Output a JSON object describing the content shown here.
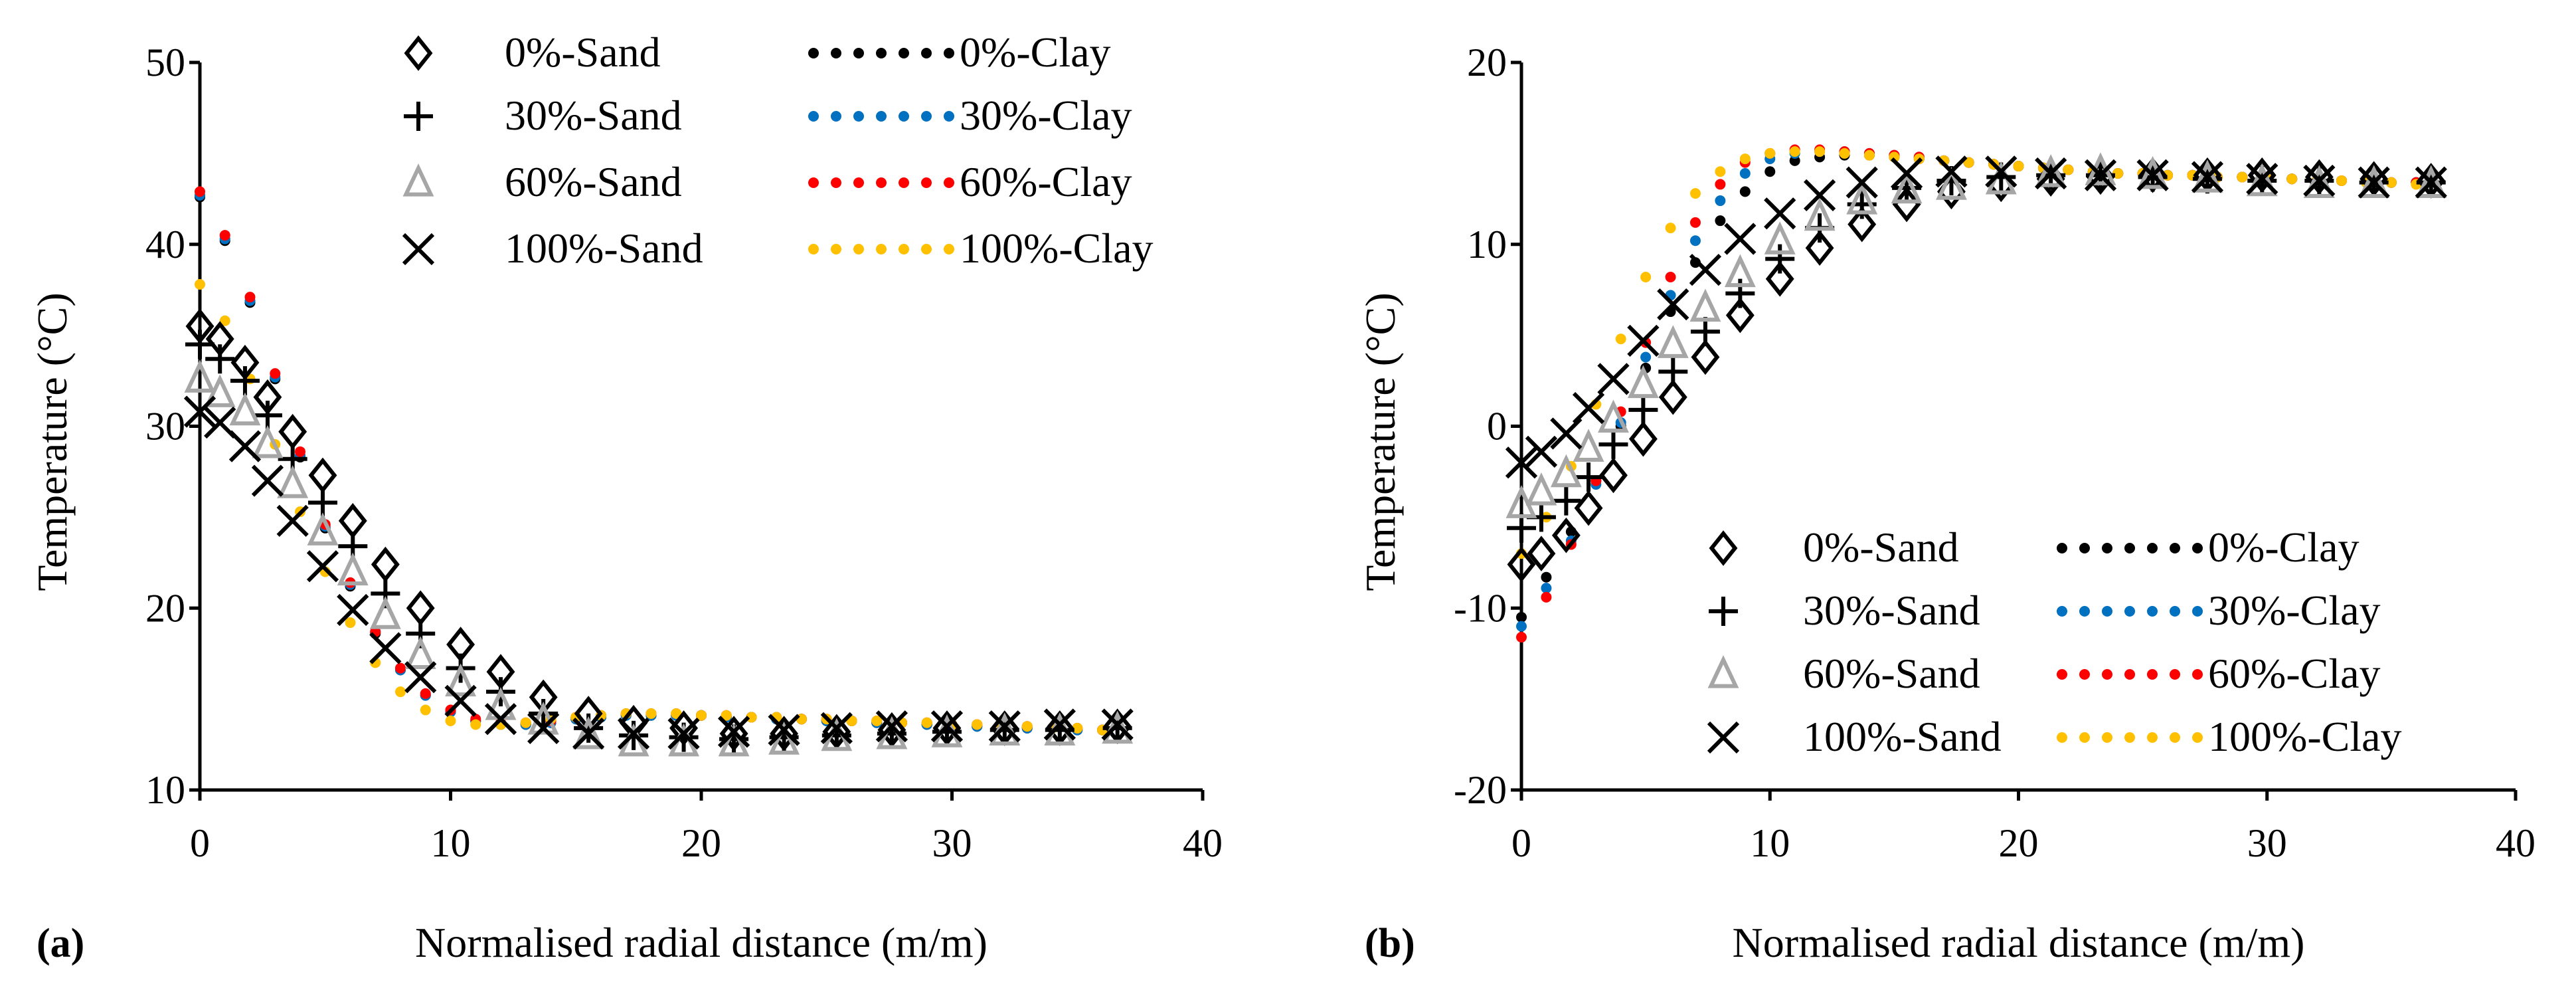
{
  "chart_data": [
    {
      "type": "scatter",
      "panel_label": "(a)",
      "xlabel": "Normalised radial distance (m/m)",
      "ylabel": "Temperature (°C)",
      "xlim": [
        0,
        40
      ],
      "ylim": [
        10,
        50
      ],
      "xticks": [
        0,
        10,
        20,
        30,
        40
      ],
      "yticks": [
        10,
        20,
        30,
        40,
        50
      ],
      "grid": false,
      "legend_position": "top-right",
      "sand_x": [
        0,
        0.8,
        1.8,
        2.7,
        3.7,
        4.9,
        6.1,
        7.4,
        8.8,
        10.4,
        12,
        13.7,
        15.5,
        17.3,
        19.3,
        21.3,
        23.3,
        25.4,
        27.6,
        29.8,
        32.1,
        34.3,
        36.6
      ],
      "sand_series": [
        {
          "name": "0%-Sand",
          "marker": "diamond",
          "color": "#000000",
          "values": [
            35.5,
            34.8,
            33.5,
            31.6,
            29.7,
            27.3,
            24.8,
            22.4,
            20,
            18,
            16.5,
            15.1,
            14.2,
            13.7,
            13.4,
            13.1,
            13.1,
            13.2,
            13.3,
            13.4,
            13.4,
            13.4,
            13.5
          ]
        },
        {
          "name": "30%-Sand",
          "marker": "plus",
          "color": "#000000",
          "values": [
            34.5,
            33.7,
            32.5,
            30.6,
            28.2,
            25.8,
            23.4,
            20.8,
            18.6,
            16.7,
            15.4,
            14.2,
            13.4,
            13,
            12.9,
            12.8,
            12.9,
            13,
            13.1,
            13.2,
            13.3,
            13.3,
            13.4
          ]
        },
        {
          "name": "60%-Sand",
          "marker": "triangle",
          "color": "#A6A6A6",
          "values": [
            32.6,
            31.8,
            30.8,
            29,
            26.8,
            24.2,
            22,
            19.6,
            17.4,
            15.9,
            14.6,
            13.8,
            13,
            12.6,
            12.6,
            12.6,
            12.7,
            12.9,
            13,
            13.1,
            13.2,
            13.2,
            13.3
          ]
        },
        {
          "name": "100%-Sand",
          "marker": "cross",
          "color": "#000000",
          "values": [
            30.8,
            30.2,
            28.9,
            27,
            24.8,
            22.3,
            19.9,
            17.8,
            16.2,
            14.9,
            13.9,
            13.4,
            13.1,
            13.1,
            13.1,
            13.2,
            13.3,
            13.4,
            13.5,
            13.5,
            13.5,
            13.6,
            13.6
          ]
        }
      ],
      "clay_x": [
        0,
        1,
        2,
        3,
        4,
        5,
        6,
        7,
        8,
        9,
        10,
        11,
        12,
        13,
        14,
        15,
        16,
        17,
        18,
        19,
        20,
        21,
        22,
        23,
        24,
        25,
        26,
        27,
        28,
        29,
        30,
        31,
        32,
        33,
        34,
        35,
        36
      ],
      "clay_series": [
        {
          "name": "0%-Clay",
          "color": "#000000",
          "values": [
            42.6,
            40.2,
            36.8,
            32.6,
            28.3,
            24.4,
            21.2,
            18.6,
            16.6,
            15.2,
            14.3,
            13.8,
            13.6,
            13.6,
            13.7,
            13.9,
            14,
            14.1,
            14.1,
            14.1,
            14.1,
            14,
            14,
            13.9,
            13.9,
            13.8,
            13.8,
            13.7,
            13.7,
            13.6,
            13.6,
            13.5,
            13.5,
            13.4,
            13.4,
            13.3,
            13.3
          ]
        },
        {
          "name": "30%-Clay",
          "color": "#0070C0",
          "values": [
            42.7,
            40.3,
            36.9,
            32.7,
            28.4,
            24.5,
            21.3,
            18.7,
            16.6,
            15.2,
            14.3,
            13.8,
            13.6,
            13.6,
            13.7,
            13.9,
            14,
            14.1,
            14.1,
            14.1,
            14.1,
            14,
            14,
            13.9,
            13.9,
            13.8,
            13.8,
            13.7,
            13.7,
            13.6,
            13.6,
            13.5,
            13.5,
            13.4,
            13.4,
            13.3,
            13.3
          ]
        },
        {
          "name": "60%-Clay",
          "color": "#FF0000",
          "values": [
            42.9,
            40.5,
            37.1,
            32.9,
            28.6,
            24.6,
            21.4,
            18.7,
            16.7,
            15.3,
            14.4,
            13.9,
            13.7,
            13.7,
            13.8,
            14,
            14.1,
            14.2,
            14.2,
            14.2,
            14.1,
            14.1,
            14,
            14,
            13.9,
            13.9,
            13.8,
            13.8,
            13.7,
            13.7,
            13.6,
            13.6,
            13.5,
            13.5,
            13.4,
            13.4,
            13.3
          ]
        },
        {
          "name": "100%-Clay",
          "color": "#FFC000",
          "values": [
            37.8,
            35.8,
            32.6,
            29,
            25.3,
            22,
            19.2,
            17,
            15.4,
            14.4,
            13.8,
            13.6,
            13.6,
            13.7,
            13.9,
            14,
            14.1,
            14.2,
            14.2,
            14.2,
            14.1,
            14.1,
            14,
            14,
            13.9,
            13.9,
            13.8,
            13.8,
            13.7,
            13.7,
            13.6,
            13.6,
            13.5,
            13.5,
            13.4,
            13.4,
            13.3
          ]
        }
      ]
    },
    {
      "type": "scatter",
      "panel_label": "(b)",
      "xlabel": "Normalised radial distance (m/m)",
      "ylabel": "Temperature (°C)",
      "xlim": [
        0,
        40
      ],
      "ylim": [
        -20,
        20
      ],
      "xticks": [
        0,
        10,
        20,
        30,
        40
      ],
      "yticks": [
        -20,
        -10,
        0,
        10,
        20
      ],
      "grid": false,
      "legend_position": "bottom-right",
      "sand_x": [
        0,
        0.8,
        1.8,
        2.7,
        3.7,
        4.9,
        6.1,
        7.4,
        8.8,
        10.4,
        12,
        13.7,
        15.5,
        17.3,
        19.3,
        21.3,
        23.3,
        25.4,
        27.6,
        29.8,
        32.1,
        34.3,
        36.6
      ],
      "sand_series": [
        {
          "name": "0%-Sand",
          "marker": "diamond",
          "color": "#000000",
          "values": [
            -7.6,
            -7,
            -6,
            -4.5,
            -2.7,
            -0.7,
            1.6,
            3.8,
            6.1,
            8.1,
            9.8,
            11.1,
            12.2,
            12.9,
            13.3,
            13.6,
            13.7,
            13.8,
            13.8,
            13.8,
            13.7,
            13.6,
            13.5
          ]
        },
        {
          "name": "30%-Sand",
          "marker": "plus",
          "color": "#000000",
          "values": [
            -5.6,
            -5,
            -4.1,
            -2.8,
            -1,
            0.9,
            3,
            5.2,
            7.3,
            9.2,
            10.9,
            12.2,
            13.1,
            13.5,
            13.7,
            13.8,
            13.8,
            13.7,
            13.6,
            13.5,
            13.5,
            13.4,
            13.4
          ]
        },
        {
          "name": "60%-Sand",
          "marker": "triangle",
          "color": "#A6A6A6",
          "values": [
            -4.3,
            -3.6,
            -2.6,
            -1.2,
            0.4,
            2.3,
            4.5,
            6.5,
            8.4,
            10.2,
            11.5,
            12.4,
            13,
            13.2,
            13.5,
            13.9,
            14,
            13.8,
            13.6,
            13.4,
            13.3,
            13.3,
            13.3
          ]
        },
        {
          "name": "100%-Sand",
          "marker": "cross",
          "color": "#000000",
          "values": [
            -2,
            -1.4,
            -0.4,
            1,
            2.6,
            4.7,
            6.7,
            8.6,
            10.3,
            11.7,
            12.7,
            13.4,
            13.9,
            14,
            14,
            13.9,
            13.8,
            13.8,
            13.7,
            13.6,
            13.5,
            13.4,
            13.4
          ]
        }
      ],
      "clay_x": [
        0,
        1,
        2,
        3,
        4,
        5,
        6,
        7,
        8,
        9,
        10,
        11,
        12,
        13,
        14,
        15,
        16,
        17,
        18,
        19,
        20,
        21,
        22,
        23,
        24,
        25,
        26,
        27,
        28,
        29,
        30,
        31,
        32,
        33,
        34,
        35,
        36
      ],
      "clay_series": [
        {
          "name": "0%-Clay",
          "color": "#000000",
          "values": [
            -10.5,
            -8.3,
            -5.8,
            -3,
            0,
            3.2,
            6.3,
            9,
            11.3,
            12.9,
            14,
            14.6,
            14.8,
            14.9,
            14.9,
            14.8,
            14.7,
            14.6,
            14.5,
            14.4,
            14.3,
            14.2,
            14.1,
            14,
            13.9,
            13.9,
            13.8,
            13.8,
            13.7,
            13.7,
            13.6,
            13.6,
            13.5,
            13.5,
            13.4,
            13.4,
            13.4
          ]
        },
        {
          "name": "30%-Clay",
          "color": "#0070C0",
          "values": [
            -11,
            -8.9,
            -6.3,
            -3.2,
            0.2,
            3.8,
            7.2,
            10.2,
            12.4,
            13.9,
            14.7,
            15,
            15.1,
            15.1,
            15,
            14.9,
            14.8,
            14.6,
            14.5,
            14.4,
            14.3,
            14.2,
            14.1,
            14,
            13.9,
            13.9,
            13.8,
            13.8,
            13.7,
            13.7,
            13.6,
            13.6,
            13.5,
            13.5,
            13.4,
            13.4,
            13.4
          ]
        },
        {
          "name": "60%-Clay",
          "color": "#FF0000",
          "values": [
            -11.6,
            -9.4,
            -6.5,
            -3,
            0.8,
            4.6,
            8.2,
            11.2,
            13.3,
            14.5,
            15,
            15.2,
            15.2,
            15.1,
            15,
            14.9,
            14.8,
            14.6,
            14.5,
            14.4,
            14.3,
            14.2,
            14.1,
            14,
            13.9,
            13.9,
            13.8,
            13.8,
            13.7,
            13.7,
            13.6,
            13.6,
            13.5,
            13.5,
            13.4,
            13.4,
            13.4
          ]
        },
        {
          "name": "100%-Clay",
          "color": "#FFC000",
          "values": [
            -7,
            -5,
            -2.2,
            1.2,
            4.8,
            8.2,
            10.9,
            12.8,
            14,
            14.7,
            15,
            15.1,
            15.1,
            15,
            14.9,
            14.8,
            14.7,
            14.6,
            14.5,
            14.4,
            14.3,
            14.2,
            14.1,
            14,
            13.9,
            13.9,
            13.8,
            13.8,
            13.7,
            13.7,
            13.6,
            13.6,
            13.5,
            13.5,
            13.4,
            13.4,
            13.3
          ]
        }
      ]
    }
  ]
}
